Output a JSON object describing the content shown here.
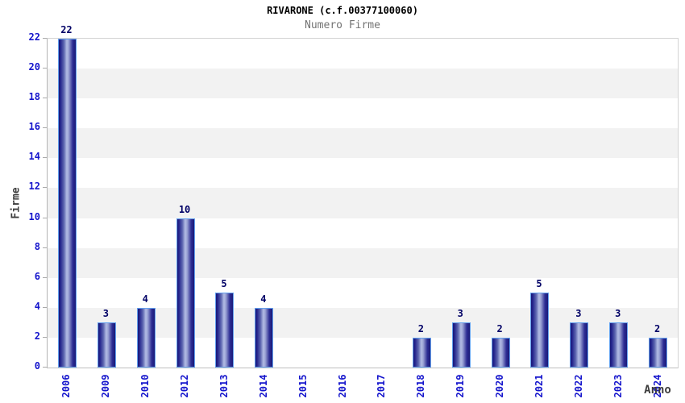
{
  "chart_data": {
    "type": "bar",
    "title": "RIVARONE (c.f.00377100060)",
    "subtitle": "Numero Firme",
    "xlabel": "Anno",
    "ylabel": "Firme",
    "categories": [
      "2006",
      "2009",
      "2010",
      "2012",
      "2013",
      "2014",
      "2015",
      "2016",
      "2017",
      "2018",
      "2019",
      "2020",
      "2021",
      "2022",
      "2023",
      "2024"
    ],
    "values": [
      22,
      3,
      4,
      10,
      5,
      4,
      0,
      0,
      0,
      2,
      3,
      2,
      5,
      3,
      3,
      2
    ],
    "ylim": [
      0,
      22
    ],
    "ytick_step": 2,
    "grid": "alternating-horizontal-bands",
    "legend_position": "none",
    "bar_value_labels_visible": true
  },
  "colors": {
    "title": "#000000",
    "subtitle": "#737373",
    "tick_label": "#1414cc",
    "bar_value_label": "#000066",
    "axis_title": "#3d3d3d",
    "bar_dark": "#1a1a78",
    "bar_mid": "#23238c",
    "bar_light": "#b2bce4",
    "bar_border": "#63a0ee",
    "band_alt": "#f2f2f2",
    "band_base": "#ffffff",
    "background": "#ffffff"
  }
}
